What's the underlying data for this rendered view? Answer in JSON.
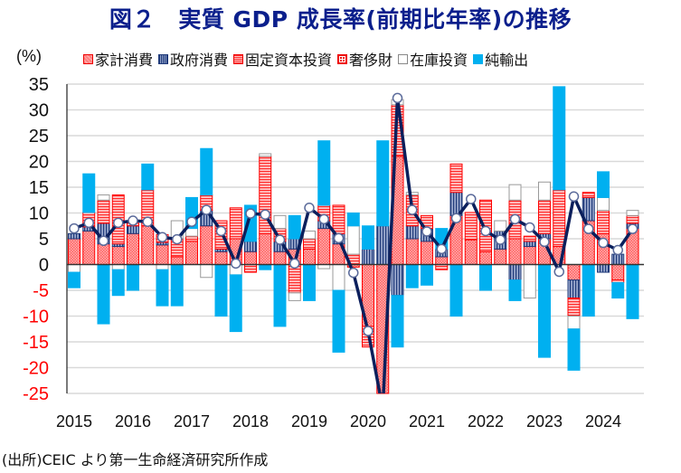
{
  "title": "図２　実質 GDP 成長率(前期比年率)の推移",
  "footer": "(出所)CEIC より第一生命経済研究所作成",
  "chart_data": {
    "type": "bar",
    "stacked": true,
    "title": "図２　実質 GDP 成長率(前期比年率)の推移",
    "ylabel": "(%)",
    "xlabel": "",
    "ylim": [
      -25,
      35
    ],
    "yticks": [
      35,
      30,
      25,
      20,
      15,
      10,
      5,
      0,
      -5,
      -10,
      -15,
      -20,
      -25
    ],
    "ytick_negative_color": "#ff0000",
    "grid": true,
    "legend_position": "top",
    "year_labels": [
      "2015",
      "2016",
      "2017",
      "2018",
      "2019",
      "2020",
      "2021",
      "2022",
      "2023",
      "2024"
    ],
    "categories": [
      "2015Q1",
      "2015Q2",
      "2015Q3",
      "2015Q4",
      "2016Q1",
      "2016Q2",
      "2016Q3",
      "2016Q4",
      "2017Q1",
      "2017Q2",
      "2017Q3",
      "2017Q4",
      "2018Q1",
      "2018Q2",
      "2018Q3",
      "2018Q4",
      "2019Q1",
      "2019Q2",
      "2019Q3",
      "2019Q4",
      "2020Q1",
      "2020Q2",
      "2020Q3",
      "2020Q4",
      "2021Q1",
      "2021Q2",
      "2021Q3",
      "2021Q4",
      "2022Q1",
      "2022Q2",
      "2022Q3",
      "2022Q4",
      "2023Q1",
      "2023Q2",
      "2023Q3",
      "2023Q4",
      "2024Q1",
      "2024Q2",
      "2024Q3"
    ],
    "series": [
      {
        "name": "家計消費",
        "key": "hh",
        "color": "#ff8080",
        "values": [
          5.0,
          6.5,
          4.0,
          3.5,
          6.0,
          7.5,
          3.8,
          1.5,
          4.5,
          7.5,
          2.5,
          5.0,
          2.5,
          6.0,
          2.5,
          3.0,
          3.0,
          7.0,
          4.0,
          -0.5,
          -12.0,
          -25.0,
          21.0,
          5.0,
          4.5,
          1.5,
          9.5,
          4.8,
          2.5,
          3.0,
          5.0,
          3.5,
          5.0,
          3.5,
          -3.0,
          8.5,
          6.0,
          -3.0,
          7.0
        ]
      },
      {
        "name": "政府消費",
        "key": "gov",
        "color": "#1f3a7a",
        "values": [
          1.0,
          0.8,
          4.0,
          0.5,
          1.5,
          0.0,
          0.5,
          0.0,
          0.0,
          3.0,
          0.5,
          0.0,
          2.0,
          0.0,
          2.0,
          2.0,
          0.0,
          1.5,
          2.0,
          0.0,
          3.0,
          7.5,
          -6.0,
          2.5,
          2.5,
          1.5,
          4.5,
          0.0,
          0.0,
          3.5,
          -3.0,
          1.0,
          1.0,
          0.0,
          -3.5,
          4.5,
          -1.5,
          2.0,
          1.0
        ]
      },
      {
        "name": "固定資本投資",
        "key": "inv",
        "color": "#ff3030",
        "values": [
          0.0,
          2.8,
          4.5,
          9.5,
          0.5,
          7.0,
          1.5,
          3.5,
          1.0,
          3.0,
          5.5,
          6.0,
          -1.5,
          15.0,
          2.5,
          -5.5,
          2.0,
          3.0,
          5.5,
          2.0,
          -4.0,
          0.0,
          10.0,
          6.0,
          2.5,
          -1.0,
          5.5,
          5.3,
          10.0,
          0.0,
          7.5,
          1.0,
          6.5,
          11.0,
          -3.5,
          1.0,
          4.5,
          -0.5,
          1.5
        ]
      },
      {
        "name": "奢侈財",
        "key": "lux",
        "color": "#ff0000",
        "values": [
          0,
          0,
          0,
          0,
          0,
          0,
          0,
          0,
          0,
          0,
          0,
          0,
          0,
          0,
          0,
          0,
          0,
          0,
          0,
          0,
          0,
          0,
          0,
          0,
          0,
          0,
          0,
          0,
          0,
          0,
          0,
          0,
          0,
          0,
          0,
          0,
          0,
          0,
          0
        ]
      },
      {
        "name": "在庫投資",
        "key": "stk",
        "color": "#ffffff",
        "values": [
          -1.5,
          0.0,
          1.0,
          -1.0,
          0.0,
          0.0,
          -1.0,
          3.5,
          1.5,
          -2.5,
          0.0,
          -2.0,
          0.0,
          0.5,
          2.5,
          -1.5,
          1.5,
          -0.8,
          -5.0,
          5.5,
          0.0,
          0.0,
          1.0,
          0.5,
          0.0,
          0.0,
          0.0,
          0.0,
          0.0,
          2.0,
          3.0,
          -6.5,
          3.5,
          0.0,
          -2.5,
          0.0,
          2.5,
          0.0,
          1.0
        ]
      },
      {
        "name": "純輸出",
        "key": "nx",
        "color": "#00b0f0",
        "values": [
          -3.0,
          7.5,
          -11.5,
          -5.0,
          -5.0,
          5.0,
          -7.0,
          -8.0,
          6.0,
          9.0,
          -10.0,
          -11.0,
          7.0,
          -1.0,
          -12.0,
          4.5,
          -7.0,
          12.5,
          -12.0,
          2.5,
          4.5,
          16.5,
          -10.0,
          -4.5,
          -4.0,
          4.0,
          -10.0,
          0.0,
          -5.0,
          0.0,
          -4.0,
          0.0,
          -18.0,
          20.0,
          -8.0,
          -10.0,
          5.0,
          -3.0,
          -10.5
        ]
      },
      {
        "name": "実質GDP成長率",
        "key": "gdp",
        "type": "line",
        "color": "#0b1f5c",
        "values": [
          7.0,
          8.1,
          4.6,
          8.1,
          8.5,
          8.3,
          5.3,
          4.9,
          8.3,
          10.6,
          6.5,
          0.2,
          9.9,
          9.7,
          4.8,
          0.2,
          11.0,
          8.8,
          5.1,
          -1.6,
          -12.9,
          -28.0,
          32.3,
          10.6,
          6.4,
          3.0,
          9.0,
          12.7,
          6.5,
          4.8,
          8.8,
          7.2,
          4.4,
          -1.4,
          13.2,
          6.9,
          4.2,
          2.8,
          6.9
        ]
      }
    ]
  }
}
